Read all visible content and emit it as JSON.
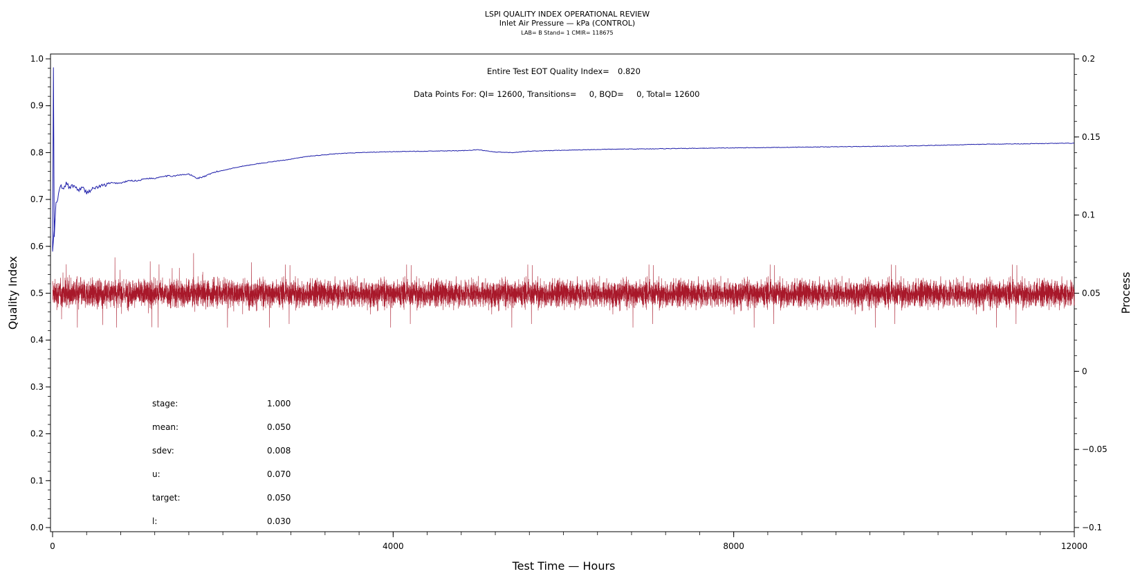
{
  "chart_data": {
    "type": "line",
    "title": "LSPI QUALITY INDEX OPERATIONAL REVIEW",
    "subtitle": "Inlet Air Pressure — kPa (CONTROL)",
    "lab_line": "LAB= B Stand= 1 CMIR= 118675",
    "xlabel": "Test Time — Hours",
    "ylabel_left": "Quality Index",
    "ylabel_right": "Process",
    "xlim": [
      0,
      12000
    ],
    "ylim_left": [
      0,
      1.0
    ],
    "ylim_right": [
      -0.1,
      0.2
    ],
    "x_ticks": [
      "0",
      "4000",
      "8000",
      "12000"
    ],
    "y_ticks_left": [
      "0.0",
      "0.1",
      "0.2",
      "0.3",
      "0.4",
      "0.5",
      "0.6",
      "0.7",
      "0.8",
      "0.9",
      "1.0"
    ],
    "y_ticks_right": [
      "-0.1",
      "-0.05",
      "0",
      "0.05",
      "0.1",
      "0.15",
      "0.2"
    ],
    "annotations": {
      "eot_label": "Entire Test EOT Quality Index=",
      "eot_value": "0.820",
      "data_points": "Data Points For: QI= 12600, Transitions=     0, BQD=     0, Total= 12600"
    },
    "stats": [
      {
        "label": "stage:",
        "value": "1.000"
      },
      {
        "label": "mean:",
        "value": "0.050"
      },
      {
        "label": "sdev:",
        "value": "0.008"
      },
      {
        "label": "u:",
        "value": "0.070"
      },
      {
        "label": "target:",
        "value": "0.050"
      },
      {
        "label": "l:",
        "value": "0.030"
      }
    ],
    "series": [
      {
        "axis": "left",
        "color": "#1a1aa8",
        "x": [
          0,
          10,
          20,
          30,
          40,
          60,
          80,
          100,
          130,
          160,
          200,
          250,
          300,
          350,
          400,
          450,
          500,
          600,
          700,
          800,
          900,
          1000,
          1100,
          1200,
          1300,
          1400,
          1500,
          1600,
          1700,
          1800,
          1900,
          2000,
          2200,
          2400,
          2600,
          2800,
          3000,
          3300,
          3600,
          4000,
          4400,
          4800,
          5000,
          5200,
          5400,
          5600,
          6000,
          6500,
          7000,
          7500,
          8000,
          8500,
          9000,
          9500,
          10000,
          10500,
          11000,
          11500,
          12000
        ],
        "y": [
          0.59,
          0.98,
          0.62,
          0.66,
          0.69,
          0.7,
          0.72,
          0.73,
          0.72,
          0.735,
          0.725,
          0.73,
          0.72,
          0.725,
          0.715,
          0.72,
          0.725,
          0.73,
          0.735,
          0.735,
          0.74,
          0.74,
          0.745,
          0.745,
          0.75,
          0.75,
          0.752,
          0.754,
          0.745,
          0.75,
          0.758,
          0.762,
          0.77,
          0.776,
          0.781,
          0.786,
          0.792,
          0.797,
          0.8,
          0.802,
          0.803,
          0.804,
          0.806,
          0.801,
          0.8,
          0.803,
          0.805,
          0.807,
          0.808,
          0.809,
          0.81,
          0.811,
          0.812,
          0.813,
          0.814,
          0.816,
          0.818,
          0.819,
          0.82
        ]
      },
      {
        "axis": "right",
        "color": "#a8182a",
        "points": 12600,
        "mean": 0.05,
        "sdev": 0.008,
        "y_range": [
          0.028,
          0.08
        ]
      }
    ]
  }
}
